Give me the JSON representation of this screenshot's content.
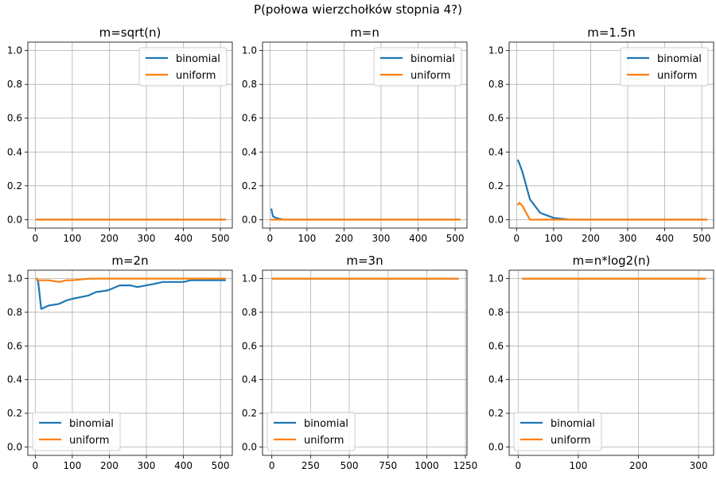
{
  "suptitle": "P(połowa wierzchołków stopnia 4?)",
  "colors": {
    "binomial": "#1f77b4",
    "uniform": "#ff7f0e",
    "grid": "#b0b0b0",
    "axis": "#000000"
  },
  "chart_data": [
    {
      "type": "line",
      "title": "m=sqrt(n)",
      "xlim": [
        -20,
        532
      ],
      "ylim": [
        -0.05,
        1.05
      ],
      "xticks": [
        0,
        100,
        200,
        300,
        400,
        500
      ],
      "yticks": [
        0.0,
        0.2,
        0.4,
        0.6,
        0.8,
        1.0
      ],
      "grid": true,
      "legend": "top-right",
      "series": [
        {
          "name": "binomial",
          "x": [
            4,
            16,
            36,
            64,
            100,
            144,
            196,
            256,
            324,
            400,
            484,
            512
          ],
          "y": [
            0,
            0,
            0,
            0,
            0,
            0,
            0,
            0,
            0,
            0,
            0,
            0
          ]
        },
        {
          "name": "uniform",
          "x": [
            4,
            16,
            36,
            64,
            100,
            144,
            196,
            256,
            324,
            400,
            484,
            512
          ],
          "y": [
            0,
            0,
            0,
            0,
            0,
            0,
            0,
            0,
            0,
            0,
            0,
            0
          ]
        }
      ]
    },
    {
      "type": "line",
      "title": "m=n",
      "xlim": [
        -20,
        532
      ],
      "ylim": [
        -0.05,
        1.05
      ],
      "xticks": [
        0,
        100,
        200,
        300,
        400,
        500
      ],
      "yticks": [
        0.0,
        0.2,
        0.4,
        0.6,
        0.8,
        1.0
      ],
      "grid": true,
      "legend": "top-right",
      "series": [
        {
          "name": "binomial",
          "x": [
            4,
            8,
            16,
            36,
            64,
            100,
            144,
            196,
            256,
            324,
            400,
            484,
            512
          ],
          "y": [
            0.06,
            0.02,
            0.01,
            0,
            0,
            0,
            0,
            0,
            0,
            0,
            0,
            0,
            0
          ]
        },
        {
          "name": "uniform",
          "x": [
            4,
            8,
            16,
            36,
            64,
            100,
            144,
            196,
            256,
            324,
            400,
            484,
            512
          ],
          "y": [
            0,
            0,
            0,
            0,
            0,
            0,
            0,
            0,
            0,
            0,
            0,
            0,
            0
          ]
        }
      ]
    },
    {
      "type": "line",
      "title": "m=1.5n",
      "xlim": [
        -20,
        532
      ],
      "ylim": [
        -0.05,
        1.05
      ],
      "xticks": [
        0,
        100,
        200,
        300,
        400,
        500
      ],
      "yticks": [
        0.0,
        0.2,
        0.4,
        0.6,
        0.8,
        1.0
      ],
      "grid": true,
      "legend": "top-right",
      "series": [
        {
          "name": "binomial",
          "x": [
            4,
            8,
            16,
            36,
            64,
            100,
            144,
            196,
            256,
            324,
            400,
            484,
            512
          ],
          "y": [
            0.35,
            0.33,
            0.28,
            0.12,
            0.04,
            0.01,
            0.0,
            0.0,
            0,
            0,
            0,
            0,
            0
          ]
        },
        {
          "name": "uniform",
          "x": [
            4,
            8,
            16,
            36,
            64,
            100,
            144,
            196,
            256,
            324,
            400,
            484,
            512
          ],
          "y": [
            0.09,
            0.1,
            0.08,
            0,
            0,
            0,
            0,
            0,
            0,
            0,
            0,
            0,
            0
          ]
        }
      ]
    },
    {
      "type": "line",
      "title": "m=2n",
      "xlim": [
        -20,
        532
      ],
      "ylim": [
        -0.05,
        1.05
      ],
      "xticks": [
        0,
        100,
        200,
        300,
        400,
        500
      ],
      "yticks": [
        0.0,
        0.2,
        0.4,
        0.6,
        0.8,
        1.0
      ],
      "grid": true,
      "legend": "bottom-left",
      "series": [
        {
          "name": "binomial",
          "x": [
            4,
            8,
            16,
            36,
            64,
            84,
            100,
            144,
            164,
            196,
            228,
            256,
            276,
            324,
            344,
            364,
            400,
            420,
            484,
            512
          ],
          "y": [
            1.0,
            0.98,
            0.82,
            0.84,
            0.85,
            0.87,
            0.88,
            0.9,
            0.92,
            0.93,
            0.96,
            0.96,
            0.95,
            0.97,
            0.98,
            0.98,
            0.98,
            0.99,
            0.99,
            0.99
          ]
        },
        {
          "name": "uniform",
          "x": [
            4,
            8,
            16,
            36,
            64,
            84,
            100,
            144,
            196,
            256,
            324,
            400,
            484,
            512
          ],
          "y": [
            1.0,
            0.99,
            0.99,
            0.99,
            0.98,
            0.99,
            0.99,
            1.0,
            1.0,
            1.0,
            1.0,
            1.0,
            1.0,
            1.0
          ]
        }
      ]
    },
    {
      "type": "line",
      "title": "m=3n",
      "xlim": [
        -60,
        1260
      ],
      "ylim": [
        -0.05,
        1.05
      ],
      "xticks": [
        0,
        250,
        500,
        750,
        1000,
        1250
      ],
      "yticks": [
        0.0,
        0.2,
        0.4,
        0.6,
        0.8,
        1.0
      ],
      "grid": true,
      "legend": "bottom-left",
      "series": [
        {
          "name": "binomial",
          "x": [
            4,
            16,
            64,
            144,
            256,
            400,
            576,
            784,
            1024,
            1200
          ],
          "y": [
            1,
            1,
            1,
            1,
            1,
            1,
            1,
            1,
            1,
            1
          ]
        },
        {
          "name": "uniform",
          "x": [
            4,
            16,
            64,
            144,
            256,
            400,
            576,
            784,
            1024,
            1200
          ],
          "y": [
            1,
            1,
            1,
            1,
            1,
            1,
            1,
            1,
            1,
            1
          ]
        }
      ]
    },
    {
      "type": "line",
      "title": "m=n*log2(n)",
      "xlim": [
        -15,
        325
      ],
      "ylim": [
        -0.05,
        1.05
      ],
      "xticks": [
        0,
        100,
        200,
        300
      ],
      "yticks": [
        0.0,
        0.2,
        0.4,
        0.6,
        0.8,
        1.0
      ],
      "grid": true,
      "legend": "bottom-left",
      "series": [
        {
          "name": "binomial",
          "x": [
            8,
            16,
            36,
            64,
            100,
            144,
            196,
            256,
            310
          ],
          "y": [
            1,
            1,
            1,
            1,
            1,
            1,
            1,
            1,
            1
          ]
        },
        {
          "name": "uniform",
          "x": [
            8,
            16,
            36,
            64,
            100,
            144,
            196,
            256,
            310
          ],
          "y": [
            1,
            1,
            1,
            1,
            1,
            1,
            1,
            1,
            1
          ]
        }
      ]
    }
  ]
}
